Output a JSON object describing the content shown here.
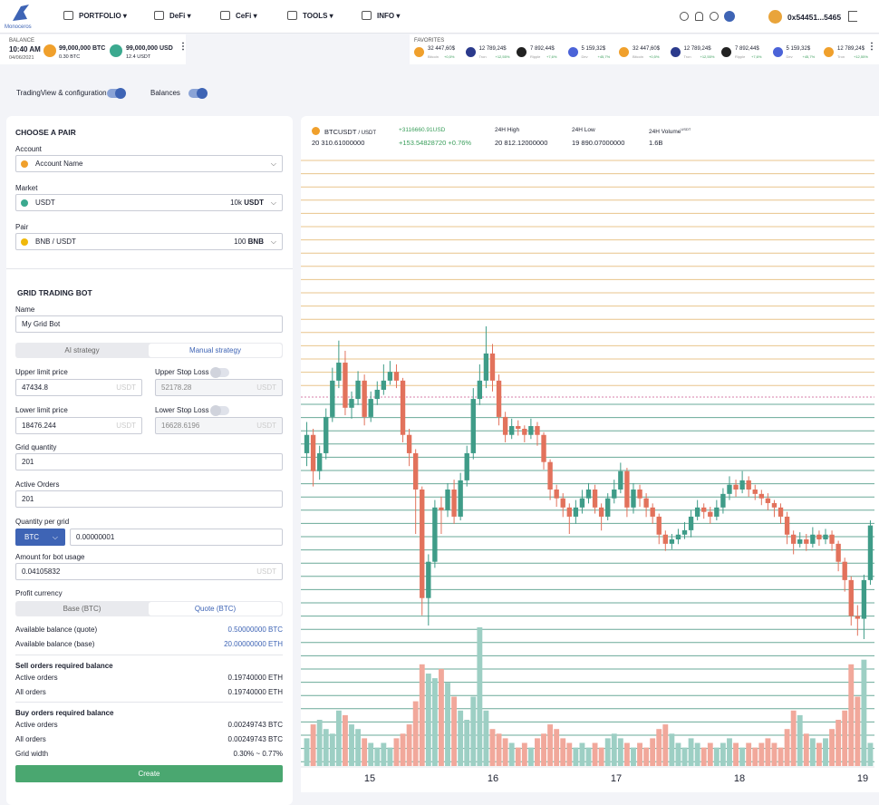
{
  "nav": {
    "logo": "Monoceros",
    "menu": [
      "PORTFOLIO",
      "DeFi",
      "CeFi",
      "TOOLS",
      "INFO"
    ],
    "wallet": "0x54451...5465"
  },
  "balance": {
    "label": "BALANCE",
    "time": "10:40 AM",
    "date": "04/06/2021",
    "assets": [
      {
        "amount": "99,000,000 BTC",
        "sub": "0.30 BTC"
      },
      {
        "amount": "99,000,000 USD",
        "sub": "12.4 USDT"
      }
    ]
  },
  "favorites": {
    "label": "FAVORITES",
    "items": [
      {
        "price": "32 447,60$",
        "name": "Bitcoin",
        "change": "+0,5%"
      },
      {
        "price": "12 789,24$",
        "name": "Tron",
        "change": "+12,55%"
      },
      {
        "price": "7 892,44$",
        "name": "Ripple",
        "change": "+7,6%"
      },
      {
        "price": "5 159,32$",
        "name": "Dev",
        "change": "+45,7%"
      },
      {
        "price": "32 447,60$",
        "name": "Bitcoin",
        "change": "+0,5%"
      },
      {
        "price": "12 789,24$",
        "name": "Tron",
        "change": "+12,55%"
      },
      {
        "price": "7 892,44$",
        "name": "Ripple",
        "change": "+7,6%"
      },
      {
        "price": "5 159,32$",
        "name": "Dev",
        "change": "+45,7%"
      },
      {
        "price": "12 789,24$",
        "name": "Tron",
        "change": "+12,55%"
      }
    ]
  },
  "toggles": [
    "TradingView & configuration",
    "Balances"
  ],
  "form": {
    "pair_title": "CHOOSE A PAIR",
    "account_label": "Account",
    "account": "Account Name",
    "market_label": "Market",
    "market": "USDT",
    "market_amount": "10k",
    "market_unit": "USDT",
    "pair_label": "Pair",
    "pair": "BNB / USDT",
    "pair_amount": "100",
    "pair_unit": "BNB",
    "bot_title": "GRID TRADING BOT",
    "name_label": "Name",
    "name": "My Grid Bot",
    "strategy_tabs": [
      "AI strategy",
      "Manual strategy"
    ],
    "upper_label": "Upper limit price",
    "upper": "47434.8",
    "upper_sl_label": "Upper Stop Loss",
    "upper_sl": "52178.28",
    "lower_label": "Lower limit price",
    "lower": "18476.244",
    "lower_sl_label": "Lower Stop Loss",
    "lower_sl": "16628.6196",
    "unit": "USDT",
    "grid_label": "Grid quantity",
    "grid": "201",
    "active_label": "Active Orders",
    "active": "201",
    "qty_label": "Quantity per grid",
    "qty_unit": "BTC",
    "qty": "0.00000001",
    "amount_label": "Amount for bot usage",
    "amount": "0.04105832",
    "profit_label": "Profit currency",
    "profit_tabs": [
      "Base (BTC)",
      "Quote (BTC)"
    ],
    "avail_quote_label": "Available balance (quote)",
    "avail_quote": "0.50000000 BTC",
    "avail_base_label": "Available balance (base)",
    "avail_base": "20.00000000 ETH",
    "sell_title": "Sell orders required balance",
    "sell_active_label": "Active orders",
    "sell_active": "0.19740000 ETH",
    "sell_all_label": "All orders",
    "sell_all": "0.19740000 ETH",
    "buy_title": "Buy orders required balance",
    "buy_active_label": "Active orders",
    "buy_active": "0.00249743 BTC",
    "buy_all_label": "All orders",
    "buy_all": "0.00249743 BTC",
    "width_label": "Grid width",
    "width": "0.30% ~ 0.77%",
    "button": "Create"
  },
  "chart": {
    "type": "candlestick",
    "symbol": "BTCUSDT",
    "quote": "/ USDT",
    "price": "20 310.61000000",
    "change_usd": "+3116660.91USD",
    "change": "+153.54828720 +0.76%",
    "high_label": "24H High",
    "high": "20 812.12000000",
    "low_label": "24H Low",
    "low": "19 890.07000000",
    "volume_label": "24H Volume",
    "volume_unit": "USDT",
    "volume_total": "1.6B",
    "days": [
      "15",
      "16",
      "17",
      "18",
      "19"
    ],
    "up_color": "#3f9c88",
    "down_color": "#e2725c",
    "up_volume_color": "#9dcfc4",
    "down_volume_color": "#f1a89b",
    "ohlc": [
      [
        20438,
        20530,
        20400,
        20492
      ],
      [
        20492,
        20510,
        20340,
        20385
      ],
      [
        20385,
        20460,
        20360,
        20438
      ],
      [
        20438,
        20570,
        20420,
        20545
      ],
      [
        20545,
        20690,
        20530,
        20652
      ],
      [
        20652,
        20770,
        20630,
        20705
      ],
      [
        20705,
        20740,
        20550,
        20572
      ],
      [
        20572,
        20620,
        20540,
        20598
      ],
      [
        20598,
        20680,
        20580,
        20652
      ],
      [
        20652,
        20670,
        20520,
        20545
      ],
      [
        20545,
        20620,
        20530,
        20598
      ],
      [
        20598,
        20650,
        20580,
        20625
      ],
      [
        20625,
        20700,
        20610,
        20652
      ],
      [
        20652,
        20710,
        20640,
        20678
      ],
      [
        20678,
        20700,
        20630,
        20652
      ],
      [
        20652,
        20660,
        20470,
        20492
      ],
      [
        20492,
        20510,
        20400,
        20438
      ],
      [
        20438,
        20450,
        20200,
        20331
      ],
      [
        20331,
        20340,
        19960,
        20011
      ],
      [
        20011,
        20140,
        19930,
        20118
      ],
      [
        20118,
        20300,
        20100,
        20278
      ],
      [
        20278,
        20310,
        20200,
        20270
      ],
      [
        20270,
        20350,
        20250,
        20331
      ],
      [
        20331,
        20360,
        20230,
        20251
      ],
      [
        20251,
        20380,
        20240,
        20358
      ],
      [
        20358,
        20460,
        20340,
        20438
      ],
      [
        20438,
        20630,
        20420,
        20598
      ],
      [
        20598,
        20700,
        20580,
        20652
      ],
      [
        20652,
        20812,
        20630,
        20732
      ],
      [
        20732,
        20760,
        20620,
        20652
      ],
      [
        20652,
        20670,
        20520,
        20545
      ],
      [
        20545,
        20560,
        20470,
        20492
      ],
      [
        20492,
        20540,
        20480,
        20518
      ],
      [
        20518,
        20535,
        20490,
        20510
      ],
      [
        20510,
        20520,
        20470,
        20492
      ],
      [
        20492,
        20540,
        20480,
        20518
      ],
      [
        20518,
        20530,
        20460,
        20492
      ],
      [
        20492,
        20500,
        20390,
        20412
      ],
      [
        20412,
        20420,
        20300,
        20331
      ],
      [
        20331,
        20345,
        20280,
        20305
      ],
      [
        20305,
        20320,
        20250,
        20278
      ],
      [
        20278,
        20290,
        20200,
        20251
      ],
      [
        20251,
        20300,
        20230,
        20278
      ],
      [
        20278,
        20330,
        20260,
        20305
      ],
      [
        20305,
        20350,
        20290,
        20331
      ],
      [
        20331,
        20345,
        20260,
        20278
      ],
      [
        20278,
        20290,
        20210,
        20251
      ],
      [
        20251,
        20320,
        20240,
        20305
      ],
      [
        20305,
        20360,
        20290,
        20331
      ],
      [
        20331,
        20410,
        20320,
        20385
      ],
      [
        20385,
        20395,
        20250,
        20278
      ],
      [
        20278,
        20350,
        20260,
        20331
      ],
      [
        20331,
        20345,
        20280,
        20305
      ],
      [
        20305,
        20320,
        20250,
        20278
      ],
      [
        20278,
        20290,
        20230,
        20251
      ],
      [
        20251,
        20260,
        20170,
        20198
      ],
      [
        20198,
        20210,
        20150,
        20171
      ],
      [
        20171,
        20200,
        20155,
        20184
      ],
      [
        20184,
        20215,
        20170,
        20198
      ],
      [
        20198,
        20235,
        20185,
        20211
      ],
      [
        20211,
        20270,
        20190,
        20251
      ],
      [
        20251,
        20300,
        20240,
        20278
      ],
      [
        20278,
        20290,
        20245,
        20265
      ],
      [
        20265,
        20280,
        20230,
        20251
      ],
      [
        20251,
        20300,
        20240,
        20278
      ],
      [
        20278,
        20335,
        20260,
        20318
      ],
      [
        20318,
        20370,
        20300,
        20345
      ],
      [
        20345,
        20360,
        20310,
        20331
      ],
      [
        20331,
        20385,
        20320,
        20358
      ],
      [
        20358,
        20370,
        20310,
        20331
      ],
      [
        20331,
        20345,
        20300,
        20318
      ],
      [
        20318,
        20330,
        20285,
        20305
      ],
      [
        20305,
        20320,
        20270,
        20291
      ],
      [
        20291,
        20300,
        20250,
        20278
      ],
      [
        20278,
        20290,
        20230,
        20251
      ],
      [
        20251,
        20265,
        20170,
        20198
      ],
      [
        20198,
        20210,
        20140,
        20171
      ],
      [
        20171,
        20205,
        20160,
        20184
      ],
      [
        20184,
        20200,
        20150,
        20171
      ],
      [
        20171,
        20220,
        20160,
        20198
      ],
      [
        20198,
        20210,
        20165,
        20184
      ],
      [
        20184,
        20215,
        20170,
        20198
      ],
      [
        20198,
        20210,
        20150,
        20171
      ],
      [
        20171,
        20180,
        20090,
        20118
      ],
      [
        20118,
        20130,
        20030,
        20064
      ],
      [
        20064,
        20075,
        19930,
        19958
      ],
      [
        19958,
        19990,
        19900,
        19950
      ],
      [
        19950,
        20080,
        19890,
        20064
      ],
      [
        20064,
        20240,
        20050,
        20225
      ]
    ],
    "volume": [
      30,
      45,
      50,
      40,
      35,
      60,
      55,
      45,
      40,
      30,
      25,
      20,
      25,
      20,
      30,
      35,
      45,
      70,
      110,
      100,
      95,
      105,
      90,
      75,
      60,
      50,
      75,
      150,
      60,
      40,
      35,
      30,
      25,
      20,
      25,
      20,
      30,
      35,
      45,
      40,
      30,
      25,
      20,
      25,
      20,
      25,
      20,
      30,
      35,
      30,
      25,
      20,
      25,
      20,
      30,
      40,
      45,
      35,
      25,
      20,
      30,
      25,
      20,
      25,
      20,
      25,
      30,
      25,
      20,
      25,
      20,
      25,
      30,
      25,
      20,
      40,
      60,
      55,
      35,
      30,
      25,
      30,
      40,
      50,
      60,
      110,
      75,
      115,
      25
    ]
  }
}
